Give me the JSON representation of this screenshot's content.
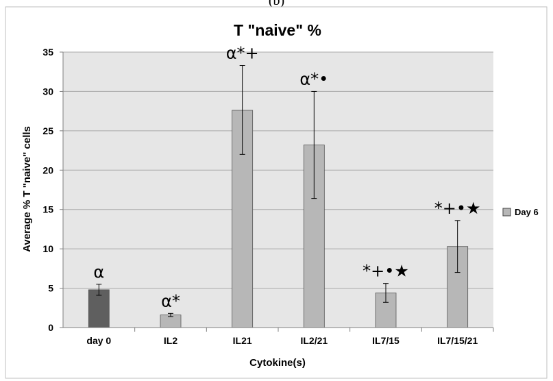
{
  "panel_label": "(b)",
  "colors": {
    "bar_day0": "#5f5f5f",
    "bar_day6": "#b7b7b7",
    "plot_background": "#e6e6e6",
    "gridline": "#a9a9a9"
  },
  "chart_data": {
    "type": "bar",
    "title": "T \"naive\" %",
    "xlabel": "Cytokine(s)",
    "ylabel": "Average % T \"naive\" cells",
    "ylim": [
      0,
      35
    ],
    "yticks": [
      0,
      5,
      10,
      15,
      20,
      25,
      30,
      35
    ],
    "grid": true,
    "legend_position": "right",
    "categories": [
      "day 0",
      "IL2",
      "IL21",
      "IL2/21",
      "IL7/15",
      "IL7/15/21"
    ],
    "series": [
      {
        "name": "Day 6",
        "values": [
          4.8,
          1.6,
          27.6,
          23.2,
          4.4,
          10.3
        ],
        "error_low": [
          4.1,
          1.4,
          22.0,
          16.4,
          3.2,
          7.0
        ],
        "error_high": [
          5.5,
          1.8,
          33.3,
          30.0,
          5.6,
          13.6
        ]
      }
    ],
    "annotations": [
      "α",
      "α*",
      "α*+",
      "α*•",
      "*+•★",
      "*+•★"
    ]
  }
}
